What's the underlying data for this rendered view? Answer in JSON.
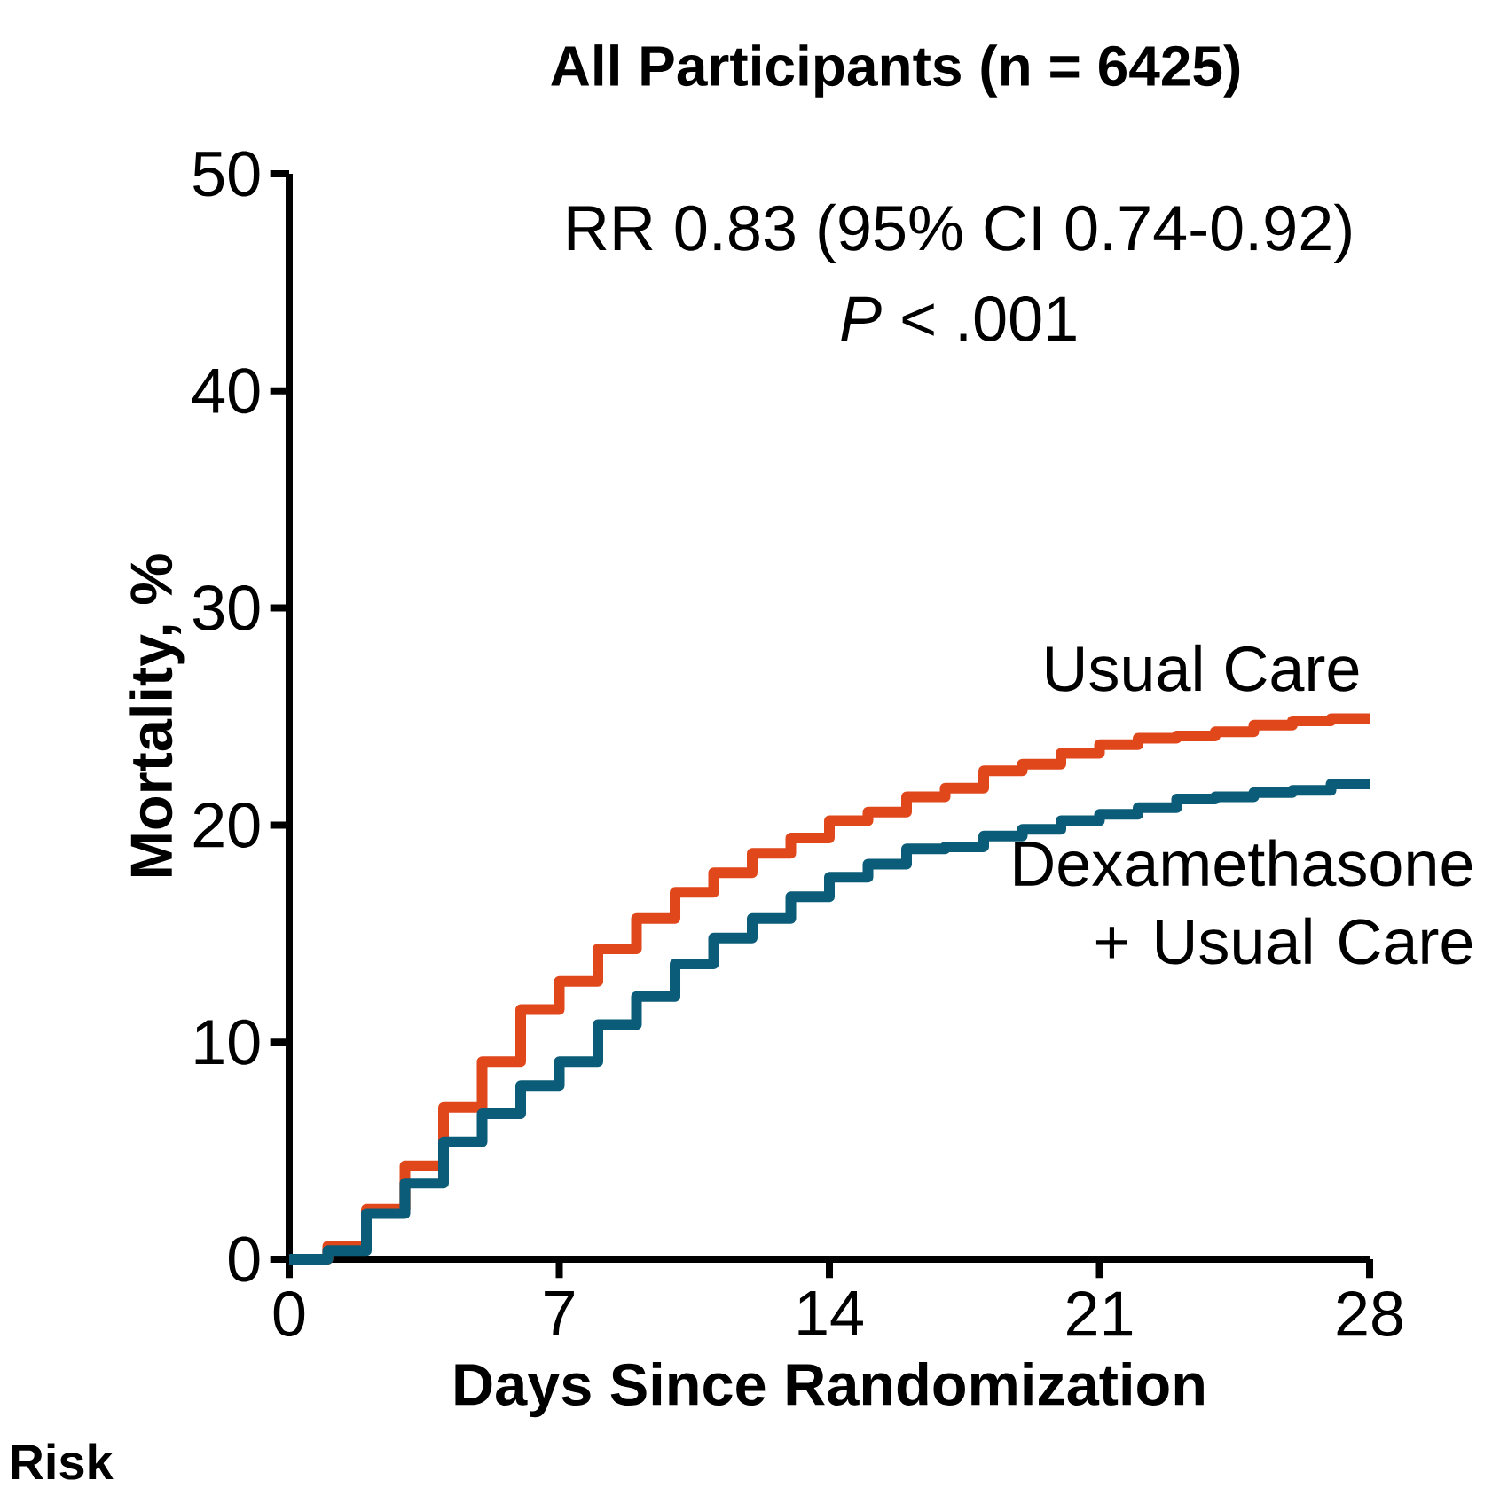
{
  "chart_data": {
    "type": "step",
    "title": "All Participants (n = 6425)",
    "xlabel": "Days Since Randomization",
    "ylabel": "Mortality, %",
    "x": [
      0,
      1,
      2,
      3,
      4,
      5,
      6,
      7,
      8,
      9,
      10,
      11,
      12,
      13,
      14,
      15,
      16,
      17,
      18,
      19,
      20,
      21,
      22,
      23,
      24,
      25,
      26,
      27,
      28
    ],
    "series": [
      {
        "name": "Usual Care",
        "color": "#e0481c",
        "values": [
          0,
          0.6,
          2.3,
          4.3,
          7.0,
          9.1,
          11.5,
          12.8,
          14.3,
          15.7,
          16.9,
          17.8,
          18.7,
          19.4,
          20.2,
          20.6,
          21.3,
          21.7,
          22.5,
          22.8,
          23.3,
          23.7,
          24.0,
          24.1,
          24.3,
          24.6,
          24.8,
          24.9,
          24.9
        ]
      },
      {
        "name": "Dexamethasone + Usual Care",
        "color": "#0a5c78",
        "values": [
          0,
          0.4,
          2.1,
          3.5,
          5.4,
          6.7,
          8.0,
          9.1,
          10.8,
          12.1,
          13.6,
          14.8,
          15.7,
          16.7,
          17.6,
          18.2,
          18.9,
          19.0,
          19.5,
          19.8,
          20.2,
          20.5,
          20.8,
          21.2,
          21.3,
          21.5,
          21.6,
          21.9,
          21.9
        ]
      }
    ],
    "xlim": [
      0,
      28
    ],
    "xticks": [
      0,
      7,
      14,
      21,
      28
    ],
    "ylim": [
      0,
      50
    ],
    "yticks": [
      0,
      10,
      20,
      30,
      40,
      50
    ],
    "grid": false,
    "annotations": [
      "RR 0.83 (95% CI 0.74-0.92)",
      "*P* < .001",
      "Risk"
    ]
  }
}
